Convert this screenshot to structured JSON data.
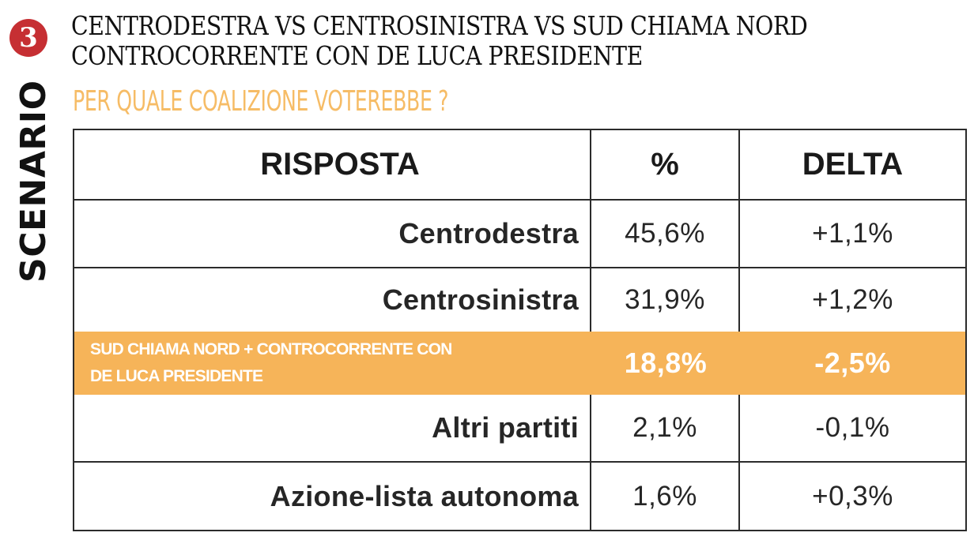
{
  "badge": "3",
  "side_label": "SCENARIO",
  "title_lines": [
    "CENTRODESTRA VS CENTROSINISTRA VS SUD CHIAMA NORD",
    "CONTROCORRENTE CON DE LUCA PRESIDENTE"
  ],
  "subtitle": "PER QUALE COALIZIONE VOTEREBBE ?",
  "colors": {
    "badge": "#c62f33",
    "highlight": "#f6b459",
    "subtitle": "#f6bc66"
  },
  "chart_data": {
    "type": "table",
    "columns": [
      "RISPOSTA",
      "%",
      "DELTA"
    ],
    "rows": [
      {
        "answer_lines": [
          "Centrodestra"
        ],
        "pct": "45,6%",
        "delta": "+1,1%"
      },
      {
        "answer_lines": [
          "Centrosinistra"
        ],
        "pct": "31,9%",
        "delta": "+1,2%"
      },
      {
        "answer_lines": [
          "SUD CHIAMA NORD + CONTROCORRENTE CON",
          "DE LUCA PRESIDENTE"
        ],
        "pct": "18,8%",
        "delta": "-2,5%",
        "highlighted": true
      },
      {
        "answer_lines": [
          "Altri partiti"
        ],
        "pct": "2,1%",
        "delta": "-0,1%"
      },
      {
        "answer_lines": [
          "Azione-lista autonoma"
        ],
        "pct": "1,6%",
        "delta": "+0,3%"
      }
    ]
  }
}
